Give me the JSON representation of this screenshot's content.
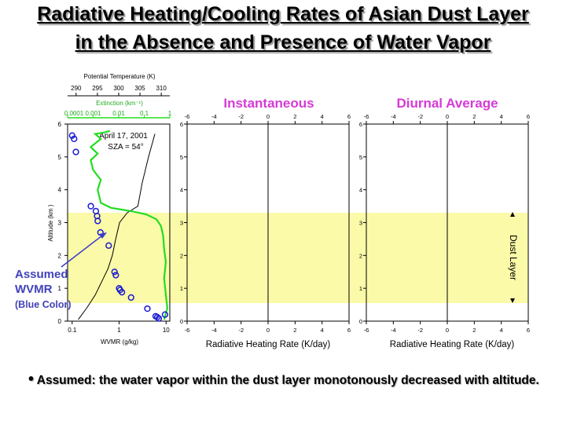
{
  "slide": {
    "title_line1": "Radiative Heating/Cooling Rates of Asian Dust Layer",
    "title_line2": "in the Absence and Presence of Water Vapor",
    "bullet": "Assumed: the water vapor within the dust layer monotonously decreased with altitude.",
    "bullet_symbol": "•"
  },
  "colors": {
    "dust_band": "#fafaa8",
    "extinction": "#22dd22",
    "wvmr": "#1a1ad0",
    "panel_title": "#d63ad6",
    "annotation": "#3a3acc"
  },
  "chart_data": [
    {
      "type": "line",
      "panel": "profile",
      "annotation_box": [
        "April 17, 2001",
        "SZA = 54°"
      ],
      "ylabel": "Altitude (km )",
      "ylim": [
        0,
        6
      ],
      "yticks": [
        0,
        1,
        2,
        3,
        4,
        5,
        6
      ],
      "y_tick_labels": [
        "0",
        "1",
        "2",
        "3",
        "4",
        "5",
        "6"
      ],
      "dust_layer_km": [
        0.55,
        3.3
      ],
      "axes": {
        "temperature": {
          "label": "Potential Temperature (K)",
          "lim": [
            288,
            312
          ],
          "ticks": [
            290,
            295,
            300,
            305,
            310
          ],
          "tick_labels": [
            "290",
            "295",
            "300",
            "305",
            "310"
          ]
        },
        "extinction": {
          "label": "Extinction (km⁻¹)",
          "scale": "log",
          "lim": [
            0.0001,
            1
          ],
          "ticks": [
            0.0001,
            0.001,
            0.01,
            0.1,
            1
          ],
          "tick_labels": [
            "0.0001",
            "0.001",
            "0.01",
            "0.1",
            "1"
          ]
        },
        "wvmr": {
          "label": "WVMR (g/kg)",
          "scale": "log",
          "lim": [
            0.08,
            12
          ],
          "ticks": [
            0.1,
            1,
            10
          ],
          "tick_labels": [
            "0.1",
            "1",
            "10"
          ]
        }
      },
      "series": [
        {
          "axis": "temperature",
          "style": "line",
          "color": "#000000",
          "x": [
            290.5,
            292.5,
            294.5,
            296,
            297.5,
            298.5,
            299.3,
            300.2,
            302,
            304.5,
            305.5,
            307,
            308.5
          ],
          "y": [
            0.05,
            0.4,
            0.8,
            1.2,
            1.6,
            2.0,
            2.5,
            3.0,
            3.3,
            3.5,
            4.2,
            5.0,
            5.7
          ]
        },
        {
          "axis": "extinction",
          "style": "line",
          "color": "#22dd22",
          "x": [
            0.6,
            0.8,
            0.7,
            0.6,
            0.7,
            0.6,
            0.55,
            0.45,
            0.3,
            0.12,
            0.03,
            0.005,
            0.002,
            0.0015,
            0.002,
            0.001,
            0.0008,
            0.0015,
            0.0008,
            0.002,
            0.0012,
            0.003,
            0.004,
            0.0045
          ],
          "y": [
            0.05,
            0.4,
            0.8,
            1.3,
            1.8,
            2.2,
            2.6,
            2.9,
            3.1,
            3.25,
            3.35,
            3.45,
            3.6,
            4.0,
            4.3,
            4.6,
            4.9,
            5.1,
            5.3,
            5.55,
            5.7,
            5.75,
            5.78,
            5.8
          ]
        },
        {
          "axis": "wvmr",
          "style": "scatter",
          "color": "#1a1ad0",
          "x": [
            0.1,
            0.11,
            0.12,
            0.25,
            0.32,
            0.34,
            0.35,
            0.4,
            0.6,
            0.8,
            0.85,
            1.0,
            1.05,
            1.15,
            1.8,
            4.0,
            6.0,
            7.0,
            9.5,
            6.5
          ],
          "y": [
            5.65,
            5.55,
            5.15,
            3.5,
            3.35,
            3.2,
            3.05,
            2.7,
            2.3,
            1.5,
            1.4,
            1.0,
            0.95,
            0.88,
            0.72,
            0.38,
            0.15,
            0.08,
            0.2,
            0.12
          ]
        }
      ]
    },
    {
      "type": "line",
      "panel": "instantaneous",
      "title": "Instantaneous",
      "xlabel": "Radiative Heating Rate (K/day)",
      "xlim": [
        -6,
        6
      ],
      "xticks": [
        -6,
        -4,
        -2,
        0,
        2,
        4,
        6
      ],
      "x_tick_labels": [
        "-6",
        "-4",
        "-2",
        "0",
        "2",
        "4",
        "6"
      ],
      "ylim": [
        0,
        6
      ],
      "yticks": [
        0,
        1,
        2,
        3,
        4,
        5,
        6
      ],
      "y_tick_labels": [
        "0",
        "1",
        "2",
        "3",
        "4",
        "5",
        "6"
      ],
      "zero_line": true,
      "series": []
    },
    {
      "type": "line",
      "panel": "diurnal",
      "title": "Diurnal Average",
      "xlabel": "Radiative Heating Rate (K/day)",
      "xlim": [
        -6,
        6
      ],
      "xticks": [
        -6,
        -4,
        -2,
        0,
        2,
        4,
        6
      ],
      "x_tick_labels": [
        "-6",
        "-4",
        "-2",
        "0",
        "2",
        "4",
        "6"
      ],
      "ylim": [
        0,
        6
      ],
      "yticks": [
        0,
        1,
        2,
        3,
        4,
        5,
        6
      ],
      "y_tick_labels": [
        "0",
        "1",
        "2",
        "3",
        "4",
        "5",
        "6"
      ],
      "zero_line": true,
      "band_label": "Dust Layer",
      "series": []
    }
  ],
  "annotation": {
    "line1": "Assumed",
    "line2": "WVMR",
    "line3": "(Blue Color)"
  }
}
